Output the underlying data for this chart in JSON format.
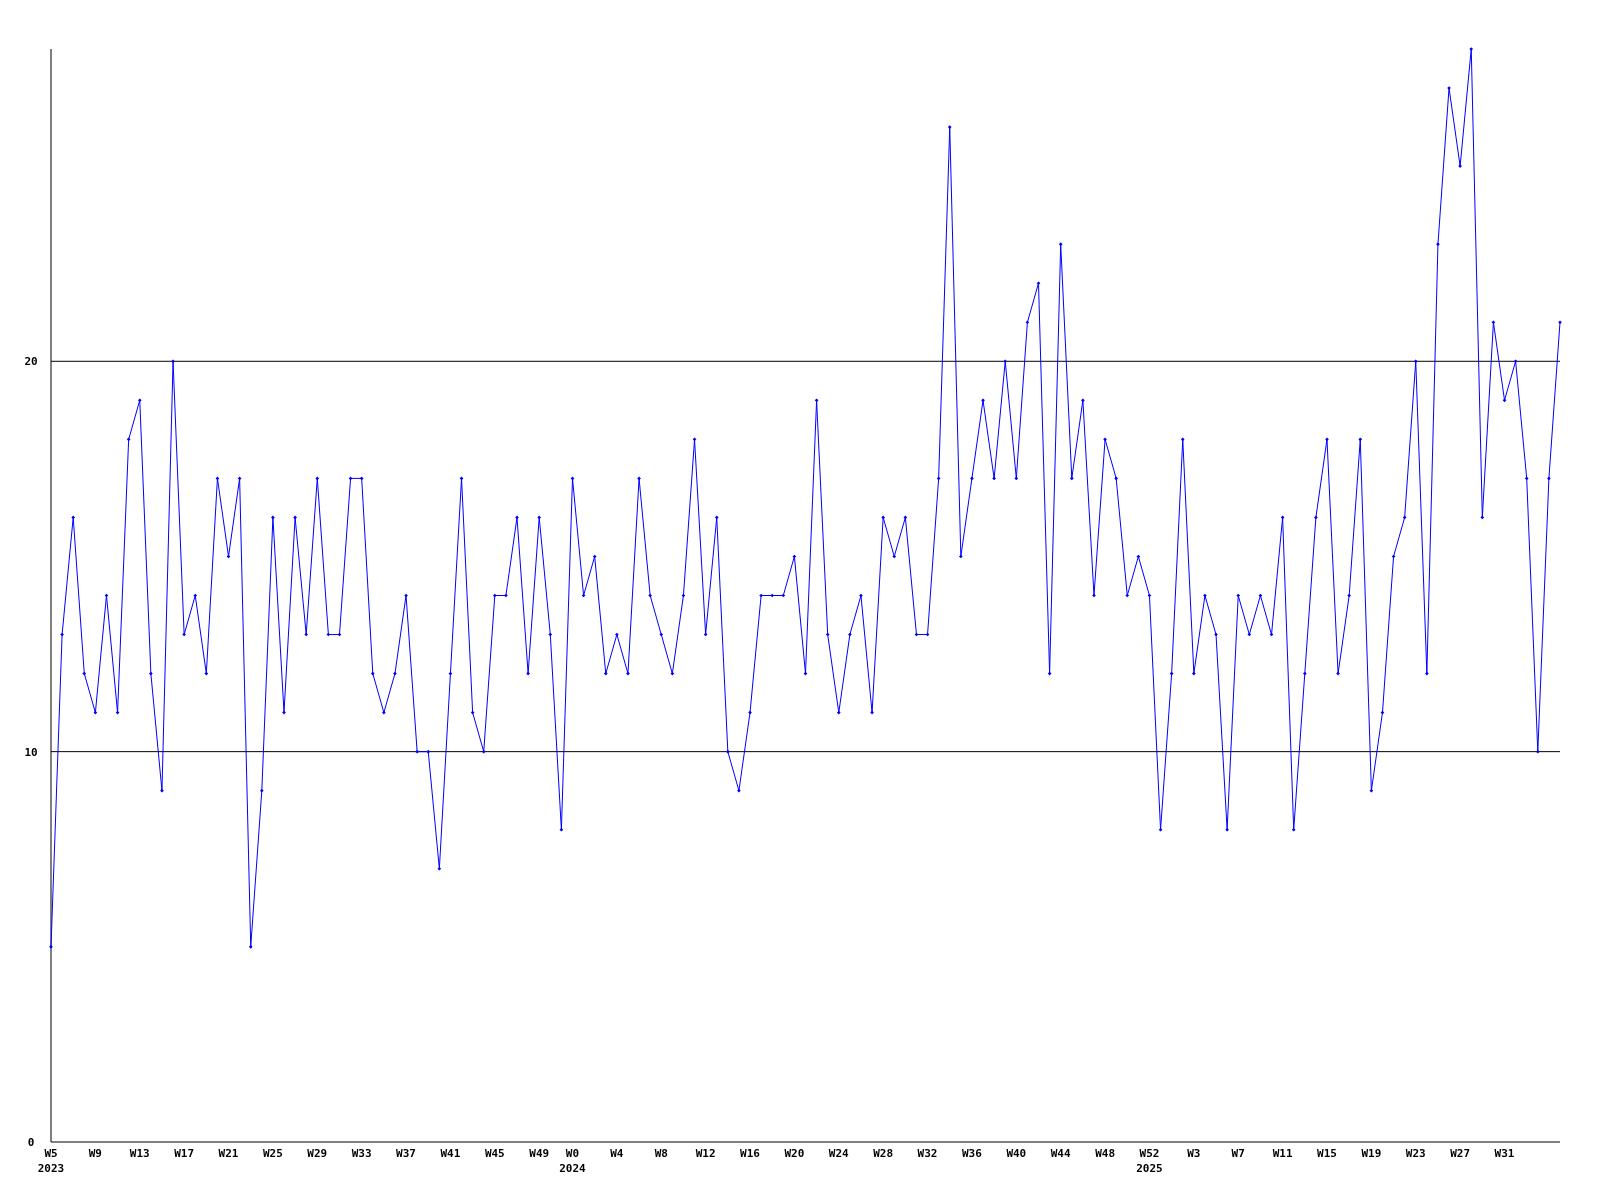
{
  "chart_data": {
    "type": "line",
    "categories": [
      "W5\n2023",
      null,
      null,
      null,
      "W9",
      null,
      null,
      null,
      "W13",
      null,
      null,
      null,
      "W17",
      null,
      null,
      null,
      "W21",
      null,
      null,
      null,
      "W25",
      null,
      null,
      null,
      "W29",
      null,
      null,
      null,
      "W33",
      null,
      null,
      null,
      "W37",
      null,
      null,
      null,
      "W41",
      null,
      null,
      null,
      "W45",
      null,
      null,
      null,
      "W49",
      null,
      null,
      "W0\n2024",
      null,
      null,
      null,
      "W4",
      null,
      null,
      null,
      "W8",
      null,
      null,
      null,
      "W12",
      null,
      null,
      null,
      "W16",
      null,
      null,
      null,
      "W20",
      null,
      null,
      null,
      "W24",
      null,
      null,
      null,
      "W28",
      null,
      null,
      null,
      "W32",
      null,
      null,
      null,
      "W36",
      null,
      null,
      null,
      "W40",
      null,
      null,
      null,
      "W44",
      null,
      null,
      null,
      "W48",
      null,
      null,
      null,
      "W52\n2025",
      null,
      null,
      null,
      "W3",
      null,
      null,
      null,
      "W7",
      null,
      null,
      null,
      "W11",
      null,
      null,
      null,
      "W15",
      null,
      null,
      null,
      "W19",
      null,
      null,
      null,
      "W23",
      null,
      null,
      null,
      "W27",
      null,
      null,
      null,
      "W31",
      null,
      null,
      null,
      null,
      null
    ],
    "series": [
      {
        "color": "#0000ff",
        "values": [
          5,
          13,
          16,
          12,
          11,
          14,
          11,
          18,
          19,
          12,
          9,
          20,
          13,
          14,
          12,
          17,
          15,
          17,
          5,
          9,
          16,
          11,
          16,
          13,
          17,
          13,
          13,
          17,
          17,
          12,
          11,
          12,
          14,
          10,
          10,
          7,
          12,
          17,
          11,
          10,
          14,
          14,
          16,
          12,
          16,
          13,
          8,
          17,
          14,
          15,
          12,
          13,
          12,
          17,
          14,
          13,
          12,
          14,
          18,
          13,
          16,
          10,
          9,
          11,
          14,
          14,
          14,
          15,
          12,
          19,
          13,
          11,
          13,
          14,
          11,
          16,
          15,
          16,
          13,
          13,
          17,
          26,
          15,
          17,
          19,
          17,
          20,
          17,
          21,
          22,
          12,
          23,
          17,
          19,
          14,
          18,
          17,
          14,
          15,
          14,
          8,
          12,
          18,
          12,
          14,
          13,
          8,
          14,
          13,
          14,
          13,
          16,
          8,
          12,
          16,
          18,
          12,
          14,
          18,
          9,
          11,
          15,
          16,
          20,
          12,
          23,
          27,
          25,
          28,
          16,
          21,
          19,
          20,
          17,
          10,
          17,
          21
        ]
      }
    ],
    "ylim": [
      0,
      28
    ],
    "yticks": [
      0,
      10,
      20
    ],
    "grid": "y",
    "marker": "diamond",
    "line_style": "solid"
  }
}
